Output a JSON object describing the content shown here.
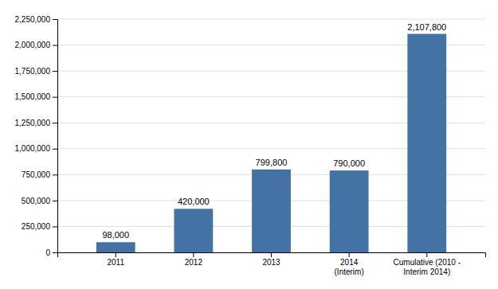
{
  "chart_data": {
    "type": "bar",
    "categories": [
      "2011",
      "2012",
      "2013",
      "2014\n(Interim)",
      "Cumulative (2010 -\nInterim 2014)"
    ],
    "values": [
      98000,
      420000,
      799800,
      790000,
      2107800
    ],
    "value_labels": [
      "98,000",
      "420,000",
      "799,800",
      "790,000",
      "2,107,800"
    ],
    "data_labels": true,
    "color": "#4472a4",
    "ylim": [
      0,
      2250000
    ],
    "yticks": [
      0,
      {
        "value": 250000,
        "label": "250,000"
      },
      {
        "value": 500000,
        "label": "500,000"
      },
      {
        "value": 750000,
        "label": "750,000"
      },
      {
        "value": 1000000,
        "label": "1,000,000"
      },
      {
        "value": 1250000,
        "label": "1,250,000"
      },
      {
        "value": 1500000,
        "label": "1,500,000"
      },
      {
        "value": 1750000,
        "label": "1,750,000"
      },
      {
        "value": 2000000,
        "label": "2,000,000"
      },
      {
        "value": 2250000,
        "label": "2,250,000"
      }
    ],
    "grid": true
  }
}
